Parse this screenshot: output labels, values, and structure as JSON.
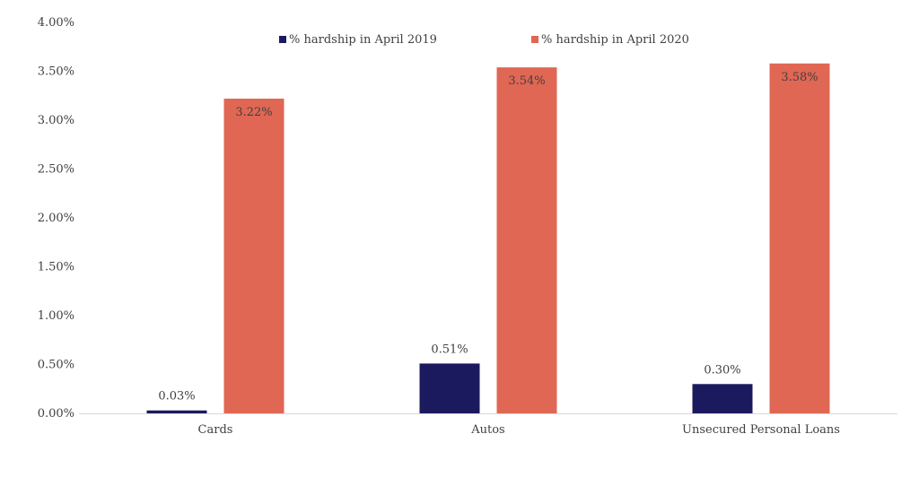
{
  "chart_data": {
    "type": "bar",
    "title": "",
    "xlabel": "",
    "ylabel": "",
    "categories": [
      "Cards",
      "Autos",
      "Unsecured Personal Loans"
    ],
    "series": [
      {
        "name": "% hardship in April 2019",
        "color": "#1c1a5e",
        "values": [
          0.03,
          0.51,
          0.3
        ],
        "labels": [
          "0.03%",
          "0.51%",
          "0.30%"
        ]
      },
      {
        "name": "% hardship in April 2020",
        "color": "#e06754",
        "values": [
          3.22,
          3.54,
          3.58
        ],
        "labels": [
          "3.22%",
          "3.54%",
          "3.58%"
        ]
      }
    ],
    "ylim": [
      0,
      4
    ],
    "yticks": [
      0,
      0.5,
      1,
      1.5,
      2,
      2.5,
      3,
      3.5,
      4
    ],
    "ytick_labels": [
      "0.00%",
      "0.50%",
      "1.00%",
      "1.50%",
      "2.00%",
      "2.50%",
      "3.00%",
      "3.50%",
      "4.00%"
    ],
    "grid": false,
    "legend_position": "top-center"
  }
}
